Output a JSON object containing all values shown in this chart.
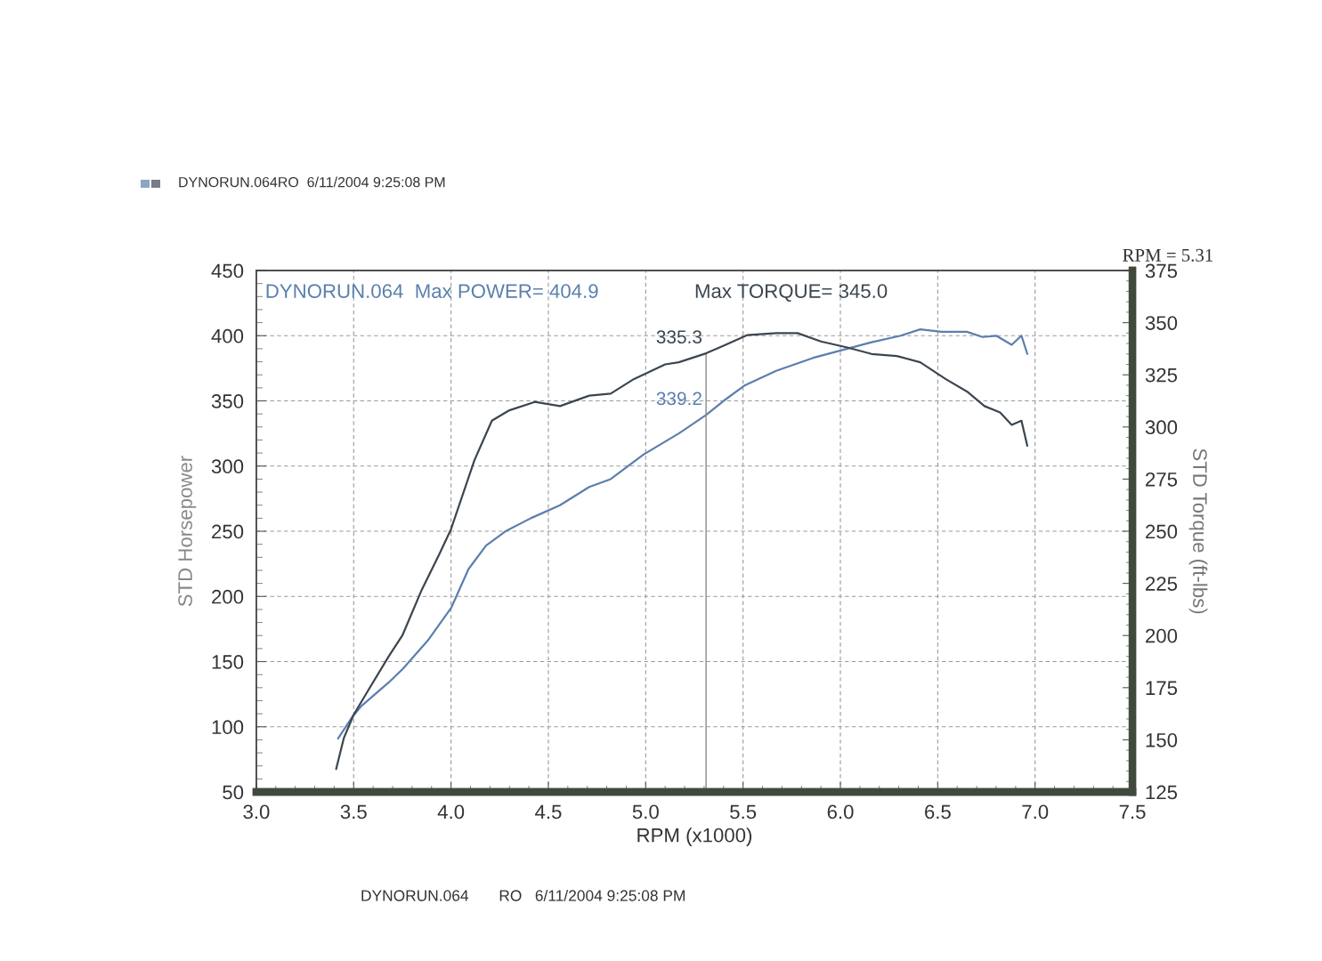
{
  "chart_data": {
    "type": "line",
    "xlabel": "RPM (x1000)",
    "ylabel": "STD Horsepower",
    "y2label": "STD Torque (ft-lbs)",
    "annotations": [
      "DYNORUN.064RO  6/11/2004 9:25:08 PM",
      "DYNORUN.064  Max POWER= 404.9",
      "Max TORQUE= 345.0",
      "RPM = 5.31",
      "DYNORUN.064       RO   6/11/2004 9:25:08 PM"
    ],
    "xlim": [
      3.0,
      7.5
    ],
    "xticks": [
      {
        "value": 3.0,
        "label": "3.0"
      },
      3.5,
      {
        "value": 4.0,
        "label": "4.0"
      },
      4.5,
      {
        "value": 5.0,
        "label": "5.0"
      },
      5.5,
      {
        "value": 6.0,
        "label": "6.0"
      },
      6.5,
      {
        "value": 7.0,
        "label": "7.0"
      },
      7.5
    ],
    "ylim": [
      50,
      450
    ],
    "yticks": [
      50,
      100,
      150,
      200,
      250,
      300,
      350,
      400,
      450
    ],
    "y2lim": [
      125,
      375
    ],
    "y2ticks": [
      125,
      150,
      175,
      200,
      225,
      250,
      275,
      300,
      325,
      350,
      375
    ],
    "grid": true,
    "ref_lines": [
      {
        "axis": "x",
        "value": 5.31,
        "color": "#8a8a8a"
      }
    ],
    "series": [
      {
        "color": "#5b7fae",
        "x": [
          3.42,
          3.49,
          3.54,
          3.68,
          3.75,
          3.88,
          4.0,
          4.09,
          4.18,
          4.28,
          4.41,
          4.56,
          4.71,
          4.82,
          4.99,
          5.17,
          5.31,
          5.4,
          5.51,
          5.67,
          5.86,
          6.01,
          6.16,
          6.31,
          6.41,
          6.52,
          6.65,
          6.73,
          6.8,
          6.88,
          6.93,
          6.96
        ],
        "values": [
          91,
          107,
          116,
          134,
          144,
          166,
          191,
          221,
          239,
          250,
          260,
          270,
          284,
          290,
          309,
          325,
          339.2,
          350,
          362,
          373,
          383,
          389,
          395,
          400,
          404.9,
          403,
          403,
          399,
          400,
          393,
          400,
          386
        ],
        "value_labels": [
          null,
          null,
          null,
          null,
          null,
          null,
          null,
          null,
          null,
          null,
          null,
          null,
          null,
          null,
          null,
          null,
          "339.2",
          null,
          null,
          null,
          null,
          null,
          null,
          null,
          null,
          null,
          null,
          null,
          null,
          null,
          null,
          null
        ]
      },
      {
        "color": "#3c4650",
        "axis": "y2",
        "x": [
          3.41,
          3.45,
          3.5,
          3.57,
          3.68,
          3.75,
          3.85,
          3.94,
          4.0,
          4.12,
          4.21,
          4.3,
          4.43,
          4.56,
          4.71,
          4.82,
          4.94,
          5.1,
          5.17,
          5.31,
          5.4,
          5.52,
          5.67,
          5.78,
          5.9,
          6.04,
          6.16,
          6.29,
          6.41,
          6.54,
          6.65,
          6.74,
          6.82,
          6.88,
          6.93,
          6.96
        ],
        "values": [
          136,
          151,
          162,
          173,
          190,
          200,
          222,
          239,
          251,
          284,
          303,
          308,
          312,
          310,
          315,
          316,
          323,
          330,
          331,
          335.3,
          339,
          344,
          345.0,
          345,
          341,
          338,
          335,
          334,
          331,
          323,
          317,
          310,
          307,
          301,
          303,
          291
        ],
        "value_labels": [
          null,
          null,
          null,
          null,
          null,
          null,
          null,
          null,
          null,
          null,
          null,
          null,
          null,
          null,
          null,
          null,
          null,
          null,
          null,
          "335.3",
          null,
          null,
          null,
          null,
          null,
          null,
          null,
          null,
          null,
          null,
          null,
          null,
          null,
          null,
          null,
          null
        ]
      }
    ]
  }
}
